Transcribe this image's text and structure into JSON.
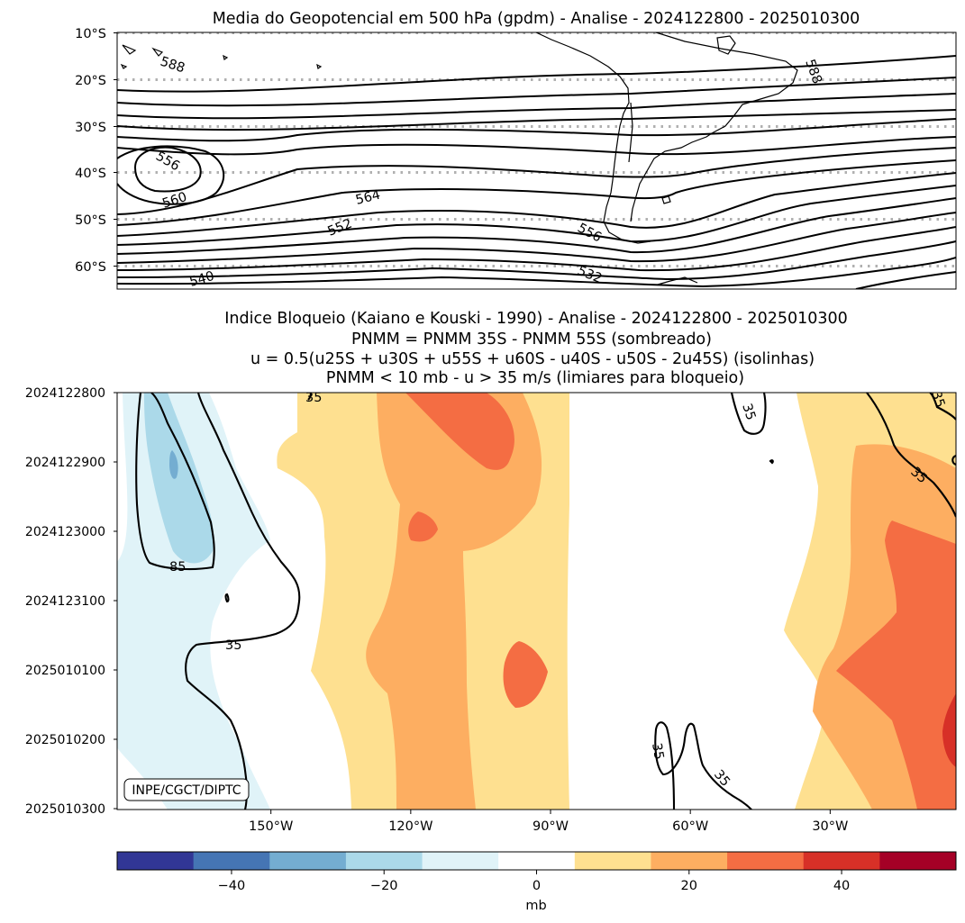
{
  "chart_data": [
    {
      "type": "contour",
      "title": "Media do Geopotencial em 500 hPa (gpdm) - Analise - 2024122800 - 2025010300",
      "yaxis_ticks": [
        "10°S",
        "20°S",
        "30°S",
        "40°S",
        "50°S",
        "60°S"
      ],
      "ylim": [
        -10,
        -65
      ],
      "contour_labels": [
        {
          "text": "588",
          "lon": -180,
          "lat": -15
        },
        {
          "text": "588",
          "lon": -33,
          "lat": -17
        },
        {
          "text": "556",
          "lon": -182,
          "lat": -37.5
        },
        {
          "text": "560",
          "lon": -180,
          "lat": -46.5
        },
        {
          "text": "564",
          "lon": -125,
          "lat": -45
        },
        {
          "text": "552",
          "lon": -156,
          "lat": -52.5
        },
        {
          "text": "556",
          "lon": -68,
          "lat": -52
        },
        {
          "text": "532",
          "lon": -72,
          "lat": -61.5
        },
        {
          "text": "540",
          "lon": -180,
          "lat": -63.5
        }
      ]
    },
    {
      "type": "filled-contour (hovmoller)",
      "title_lines": [
        "Indice Bloqueio (Kaiano e Kouski - 1990) - Analise - 2024122800 - 2025010300",
        "PNMM = PNMM 35S - PNMM 55S (sombreado)",
        "u = 0.5(u25S + u30S + u55S + u60S - u40S - u50S - 2u45S) (isolinhas)",
        "PNMM < 10 mb - u > 35 m/s (limiares para bloqueio)"
      ],
      "y_ticks": [
        "2024122800",
        "2024122900",
        "2024123000",
        "2024123100",
        "2025010100",
        "2025010200",
        "2025010300"
      ],
      "x_ticks": [
        "150°W",
        "120°W",
        "90°W",
        "60°W",
        "30°W"
      ],
      "x_tick_lon": [
        -150,
        -120,
        -90,
        -60,
        -30
      ],
      "xlim": [
        -183,
        -3
      ],
      "isoline_labels": [
        {
          "text": "35",
          "lon": -133,
          "day": 0.06
        },
        {
          "text": "35",
          "lon": -57,
          "day": 0.3
        },
        {
          "text": "35",
          "lon": -6,
          "day": 0.0
        },
        {
          "text": "35",
          "lon": -21,
          "day": 1.2
        },
        {
          "text": "85",
          "lon": -163,
          "day": 2.5
        },
        {
          "text": "35",
          "lon": -147,
          "day": 3.85
        },
        {
          "text": "35",
          "lon": -59,
          "day": 5.2
        },
        {
          "text": "35",
          "lon": -51,
          "day": 5.5
        }
      ],
      "credit": "INPE/CGCT/DIPTC"
    },
    {
      "type": "colorbar",
      "label": "mb",
      "levels": [
        -55,
        -45,
        -35,
        -25,
        -15,
        -5,
        5,
        15,
        25,
        35,
        45,
        55
      ],
      "ticks": [
        -40,
        -20,
        0,
        20,
        40
      ],
      "tick_labels": [
        "−40",
        "−20",
        "0",
        "20",
        "40"
      ],
      "colors": [
        "#313695",
        "#4575b4",
        "#74add1",
        "#abd9e9",
        "#e0f3f8",
        "#ffffff",
        "#fee090",
        "#fdae61",
        "#f46d43",
        "#d73027",
        "#a50026"
      ]
    }
  ]
}
